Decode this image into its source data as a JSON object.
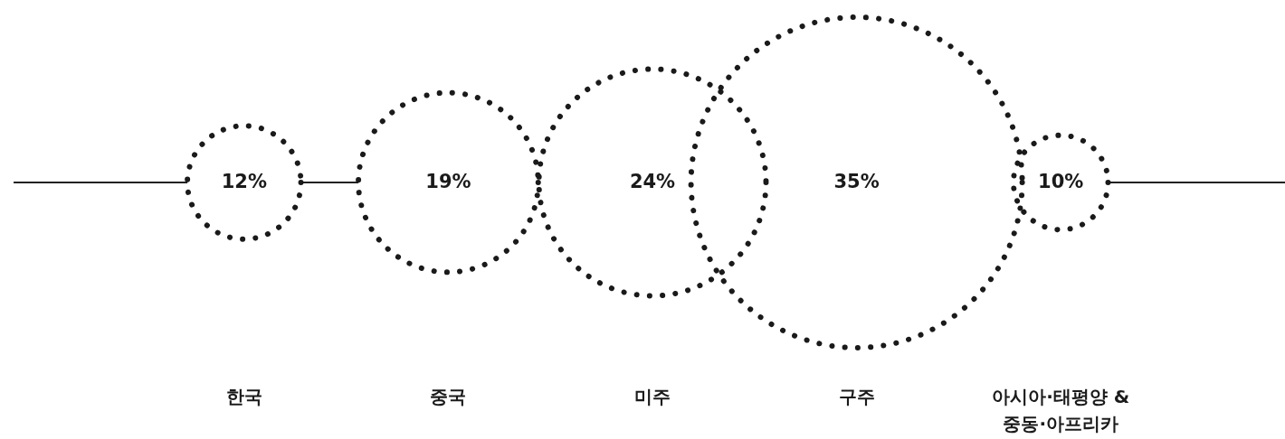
{
  "chart_data": {
    "type": "other",
    "categories": [
      "한국",
      "중국",
      "미주",
      "구주",
      "아시아·태평양 & 중동·아프리카"
    ],
    "values": [
      12,
      19,
      24,
      35,
      10
    ],
    "value_labels": [
      "12%",
      "19%",
      "24%",
      "35%",
      "10%"
    ]
  }
}
